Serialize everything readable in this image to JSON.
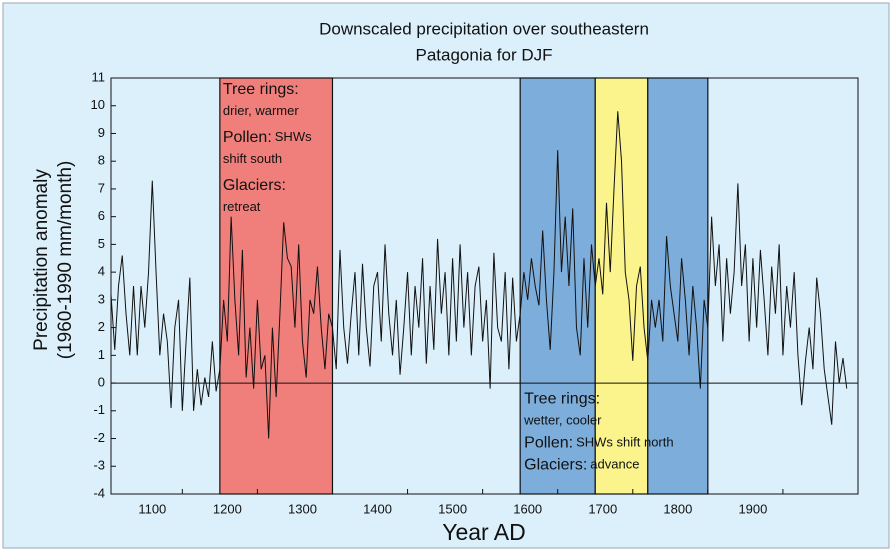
{
  "chart_data": {
    "type": "line",
    "title_lines": [
      "Downscaled precipitation over southeastern",
      "Patagonia for DJF"
    ],
    "y_label_lines": [
      "Precipitation anomaly",
      "(1960-1990 mm/month)"
    ],
    "x_label": "Year AD",
    "color": "#111111",
    "xlim": [
      1005,
      2000
    ],
    "ylim": [
      -4,
      11
    ],
    "xticks": [
      1100,
      1200,
      1300,
      1400,
      1500,
      1600,
      1700,
      1800,
      1900
    ],
    "yticks": [
      -4,
      -3,
      -2,
      -1,
      0,
      1,
      2,
      3,
      4,
      5,
      6,
      7,
      8,
      9,
      10,
      11
    ],
    "periods": [
      {
        "start": 1150,
        "end": 1300,
        "color": "#f07f7c"
      },
      {
        "start": 1550,
        "end": 1650,
        "color": "#7daedb"
      },
      {
        "start": 1650,
        "end": 1720,
        "color": "#fbf38c"
      },
      {
        "start": 1720,
        "end": 1800,
        "color": "#7daedb"
      }
    ],
    "annotations": [
      {
        "lines": [
          {
            "key": "Tree rings:"
          },
          {
            "text": "drier, warmer"
          },
          {
            "key": "Pollen:",
            "text": "SHWs"
          },
          {
            "text": "shift south"
          },
          {
            "key": "Glaciers:"
          },
          {
            "text": "retreat"
          }
        ]
      },
      {
        "lines": [
          {
            "key": "Tree rings:"
          },
          {
            "text": "wetter, cooler"
          },
          {
            "key": "Pollen:",
            "text": "SHWs shift north"
          },
          {
            "key": "Glaciers:",
            "text": "advance"
          }
        ]
      }
    ],
    "x": [
      1005,
      1010,
      1015,
      1020,
      1025,
      1030,
      1035,
      1040,
      1045,
      1050,
      1055,
      1060,
      1065,
      1070,
      1075,
      1080,
      1085,
      1090,
      1095,
      1100,
      1105,
      1110,
      1115,
      1120,
      1125,
      1130,
      1135,
      1140,
      1145,
      1150,
      1155,
      1160,
      1165,
      1170,
      1175,
      1180,
      1185,
      1190,
      1195,
      1200,
      1205,
      1210,
      1215,
      1220,
      1225,
      1230,
      1235,
      1240,
      1245,
      1250,
      1255,
      1260,
      1265,
      1270,
      1275,
      1280,
      1285,
      1290,
      1295,
      1300,
      1305,
      1310,
      1315,
      1320,
      1325,
      1330,
      1335,
      1340,
      1345,
      1350,
      1355,
      1360,
      1365,
      1370,
      1375,
      1380,
      1385,
      1390,
      1395,
      1400,
      1405,
      1410,
      1415,
      1420,
      1425,
      1430,
      1435,
      1440,
      1445,
      1450,
      1455,
      1460,
      1465,
      1470,
      1475,
      1480,
      1485,
      1490,
      1495,
      1500,
      1505,
      1510,
      1515,
      1520,
      1525,
      1530,
      1535,
      1540,
      1545,
      1550,
      1555,
      1560,
      1565,
      1570,
      1575,
      1580,
      1585,
      1590,
      1595,
      1600,
      1605,
      1610,
      1615,
      1620,
      1625,
      1630,
      1635,
      1640,
      1645,
      1650,
      1655,
      1660,
      1665,
      1670,
      1675,
      1680,
      1685,
      1690,
      1695,
      1700,
      1705,
      1710,
      1715,
      1720,
      1725,
      1730,
      1735,
      1740,
      1745,
      1750,
      1755,
      1760,
      1765,
      1770,
      1775,
      1780,
      1785,
      1790,
      1795,
      1800,
      1805,
      1810,
      1815,
      1820,
      1825,
      1830,
      1835,
      1840,
      1845,
      1850,
      1855,
      1860,
      1865,
      1870,
      1875,
      1880,
      1885,
      1890,
      1895,
      1900,
      1905,
      1910,
      1915,
      1920,
      1925,
      1930,
      1935,
      1940,
      1945,
      1950,
      1955,
      1960,
      1965,
      1970,
      1975,
      1980,
      1985
    ],
    "values": [
      3.2,
      1.2,
      3.5,
      4.6,
      2.5,
      1.0,
      3.5,
      1.0,
      3.5,
      2.0,
      4.0,
      7.3,
      4.0,
      1.0,
      2.5,
      1.5,
      -0.9,
      2.0,
      3.0,
      -1.0,
      1.5,
      3.8,
      -1.0,
      0.5,
      -0.8,
      0.2,
      -0.5,
      1.5,
      -0.3,
      0.5,
      3.0,
      1.5,
      6.0,
      3.0,
      1.0,
      4.8,
      0.2,
      2.0,
      -0.2,
      3.0,
      0.5,
      1.0,
      -2.0,
      2.0,
      -0.5,
      2.5,
      5.8,
      4.5,
      4.2,
      2.0,
      5.0,
      1.5,
      0.2,
      3.0,
      2.5,
      4.2,
      2.0,
      0.5,
      2.5,
      2.0,
      0.5,
      4.8,
      2.0,
      0.7,
      2.5,
      4.0,
      1.0,
      4.3,
      2.0,
      0.6,
      3.5,
      4.0,
      1.5,
      5.0,
      2.5,
      1.0,
      3.0,
      0.3,
      2.0,
      4.0,
      1.0,
      3.5,
      2.0,
      4.5,
      0.7,
      3.5,
      1.2,
      5.2,
      2.5,
      4.0,
      1.0,
      4.5,
      1.5,
      5.0,
      2.0,
      4.0,
      1.0,
      3.5,
      4.2,
      1.5,
      3.0,
      -0.2,
      4.7,
      2.0,
      1.5,
      4.0,
      0.5,
      3.8,
      1.5,
      2.5,
      4.0,
      3.0,
      4.5,
      3.5,
      2.8,
      5.5,
      3.0,
      1.2,
      4.0,
      8.4,
      4.0,
      6.0,
      3.5,
      6.3,
      2.0,
      1.0,
      4.5,
      2.0,
      5.0,
      3.5,
      4.5,
      3.2,
      6.5,
      4.0,
      7.0,
      9.8,
      8.0,
      4.0,
      3.0,
      0.8,
      3.5,
      4.2,
      2.0,
      0.8,
      3.0,
      2.0,
      3.0,
      1.5,
      5.3,
      3.5,
      2.5,
      1.5,
      4.5,
      3.0,
      1.0,
      3.5,
      2.0,
      -0.2,
      3.0,
      2.0,
      6.0,
      3.5,
      5.0,
      1.5,
      4.5,
      2.5,
      4.0,
      7.2,
      3.5,
      5.0,
      1.5,
      4.5,
      2.0,
      4.8,
      3.0,
      1.0,
      4.2,
      2.5,
      5.0,
      1.0,
      3.5,
      2.0,
      4.0,
      1.0,
      -0.8,
      0.8,
      2.0,
      0.5,
      3.8,
      2.5,
      0.5,
      -0.5,
      -1.5,
      1.5,
      0.0,
      0.9,
      -0.2
    ]
  }
}
